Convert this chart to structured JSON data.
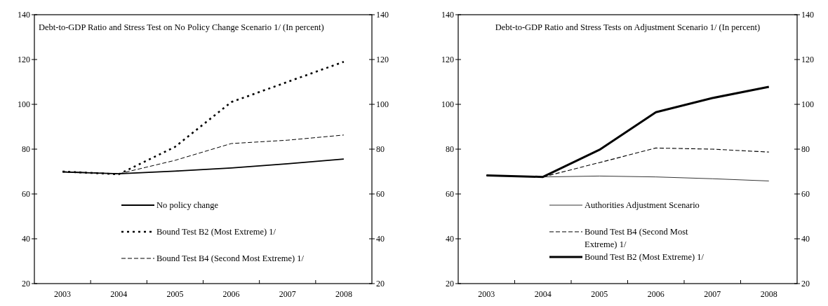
{
  "chart_data": [
    {
      "type": "line",
      "title": "Debt-to-GDP Ratio and Stress Test on No Policy Change Scenario 1/ (In percent)",
      "categories": [
        "2003",
        "2004",
        "2005",
        "2006",
        "2007",
        "2008"
      ],
      "series": [
        {
          "name": "No policy change",
          "color": "#000000",
          "line_style": "solid",
          "values": [
            69.8,
            69.0,
            70.2,
            71.6,
            73.5,
            75.6
          ]
        },
        {
          "name": "Bound Test B2 (Most Extreme) 1/",
          "color": "#000000",
          "line_style": "dotted",
          "values": [
            70.0,
            68.8,
            81.0,
            101.0,
            110.0,
            119.0
          ]
        },
        {
          "name": "Bound Test B4 (Second Most Extreme) 1/",
          "color": "#000000",
          "line_style": "dashed",
          "values": [
            70.0,
            69.0,
            75.0,
            82.5,
            84.0,
            86.3
          ]
        }
      ],
      "ylim": [
        20,
        140
      ],
      "yticks": [
        20,
        40,
        60,
        80,
        100,
        120,
        140
      ],
      "y2lim": [
        20,
        140
      ],
      "y2ticks": [
        20,
        40,
        60,
        80,
        100,
        120,
        140
      ],
      "grid": false,
      "legend": "bottom",
      "marker": "none"
    },
    {
      "type": "line",
      "title": "Debt-to-GDP Ratio and Stress Tests on Adjustment Scenario 1/ (In percent)",
      "categories": [
        "2003",
        "2004",
        "2005",
        "2006",
        "2007",
        "2008"
      ],
      "series": [
        {
          "name": "Authorities Adjustment Scenario",
          "color": "#000000",
          "line_style": "solid",
          "values": [
            68.3,
            67.6,
            68.0,
            67.6,
            66.8,
            65.8
          ]
        },
        {
          "name": "Bound Test B4 (Second Most Extreme) 1/",
          "color": "#000000",
          "line_style": "dashed",
          "values": [
            68.3,
            67.6,
            74.0,
            80.5,
            80.0,
            78.7
          ]
        },
        {
          "name": "Bound Test B2 (Most Extreme) 1/",
          "color": "#000000",
          "line_style": "solid",
          "values": [
            68.3,
            67.6,
            79.7,
            96.5,
            102.8,
            107.8
          ]
        }
      ],
      "ylim": [
        20,
        140
      ],
      "yticks": [
        20,
        40,
        60,
        80,
        100,
        120,
        140
      ],
      "y2lim": [
        20,
        140
      ],
      "y2ticks": [
        20,
        40,
        60,
        80,
        100,
        120,
        140
      ],
      "grid": false,
      "legend": "bottom",
      "marker": "none"
    }
  ]
}
